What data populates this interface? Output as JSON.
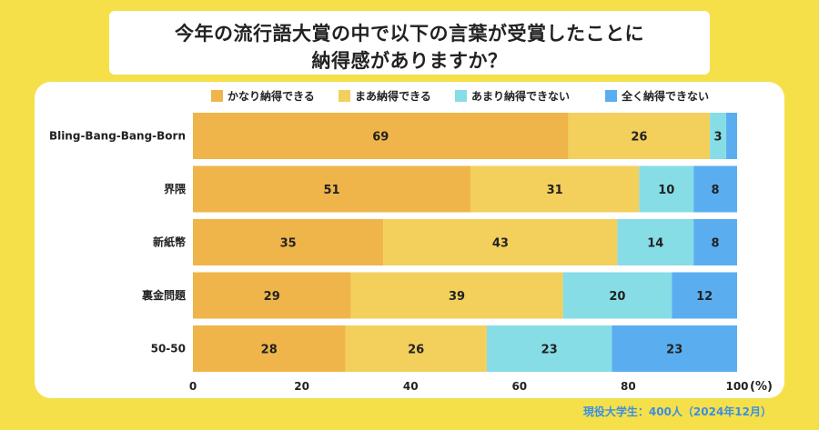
{
  "title": {
    "line1": "今年の流行語大賞の中で以下の言葉が受賞したことに",
    "line2": "納得感がありますか？"
  },
  "legend": [
    {
      "label": "かなり納得できる",
      "color": "#efb54a"
    },
    {
      "label": "まあ納得できる",
      "color": "#f3cf5c"
    },
    {
      "label": "あまり納得できない",
      "color": "#86dde6"
    },
    {
      "label": "全く納得できない",
      "color": "#5aaef0"
    }
  ],
  "source": "現役大学生：400人（2024年12月）",
  "chart_data": {
    "type": "bar",
    "orientation": "horizontal",
    "stacked": true,
    "categories": [
      "Bling-Bang-Bang-Born",
      "界隈",
      "新紙幣",
      "裏金問題",
      "50-50"
    ],
    "series": [
      {
        "name": "かなり納得できる",
        "color": "#efb54a",
        "values": [
          69,
          51,
          35,
          29,
          28
        ]
      },
      {
        "name": "まあ納得できる",
        "color": "#f3cf5c",
        "values": [
          26,
          31,
          43,
          39,
          26
        ]
      },
      {
        "name": "あまり納得できない",
        "color": "#86dde6",
        "values": [
          3,
          10,
          14,
          20,
          23
        ]
      },
      {
        "name": "全く納得できない",
        "color": "#5aaef0",
        "values": [
          2,
          8,
          8,
          12,
          23
        ]
      }
    ],
    "labels": [
      [
        "69",
        "26",
        "3",
        ""
      ],
      [
        "51",
        "31",
        "10",
        "8"
      ],
      [
        "35",
        "43",
        "14",
        "8"
      ],
      [
        "29",
        "39",
        "20",
        "12"
      ],
      [
        "28",
        "26",
        "23",
        "23"
      ]
    ],
    "xticks": [
      "0",
      "20",
      "40",
      "60",
      "80",
      "100"
    ],
    "xlim": [
      0,
      100
    ],
    "xunit": "(%)",
    "legend_position": "top",
    "grid": false
  }
}
